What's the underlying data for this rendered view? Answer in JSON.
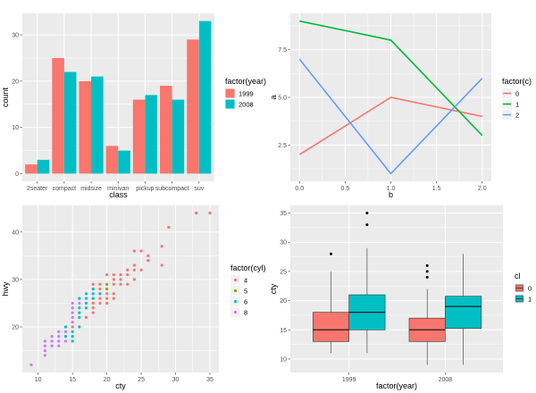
{
  "chart_data": [
    {
      "type": "bar",
      "xlabel": "class",
      "ylabel": "count",
      "categories": [
        "2seater",
        "compact",
        "midsize",
        "minivan",
        "pickup",
        "subcompact",
        "suv"
      ],
      "series": [
        {
          "name": "1999",
          "color": "#F8766D",
          "values": [
            2,
            25,
            20,
            6,
            16,
            19,
            29
          ]
        },
        {
          "name": "2008",
          "color": "#00BFC4",
          "values": [
            3,
            22,
            21,
            5,
            17,
            16,
            33
          ]
        }
      ],
      "legend_title": "factor(year)",
      "legend_position": "right",
      "ylim": [
        -1.65,
        34.65
      ],
      "yticks": [
        0,
        10,
        20,
        30
      ],
      "ytick_labels": [
        "0",
        "10",
        "20",
        "30"
      ],
      "grid": true,
      "background": "#EBEBEB"
    },
    {
      "type": "line",
      "xlabel": "b",
      "ylabel": "a",
      "x": [
        0,
        1,
        2
      ],
      "series": [
        {
          "name": "0",
          "color": "#F8766D",
          "values": [
            2,
            5,
            4
          ]
        },
        {
          "name": "1",
          "color": "#00BA38",
          "values": [
            9,
            8,
            3
          ]
        },
        {
          "name": "2",
          "color": "#619CFF",
          "values": [
            7,
            1,
            6
          ]
        }
      ],
      "legend_title": "factor(c)",
      "legend_position": "right",
      "xlim": [
        -0.1,
        2.1
      ],
      "ylim": [
        0.6,
        9.4
      ],
      "xticks": [
        0,
        0.5,
        1,
        1.5,
        2
      ],
      "xtick_labels": [
        "0.0",
        "0.5",
        "1.0",
        "1.5",
        "2.0"
      ],
      "yticks": [
        2.5,
        5,
        7.5
      ],
      "ytick_labels": [
        "2.5",
        "5.0",
        "7.5"
      ],
      "grid": true
    },
    {
      "type": "scatter",
      "xlabel": "cty",
      "ylabel": "hwy",
      "legend_title": "factor(cyl)",
      "legend_position": "right",
      "groups": [
        {
          "name": "4",
          "color": "#F8766D"
        },
        {
          "name": "5",
          "color": "#7CAE00"
        },
        {
          "name": "6",
          "color": "#00BFC4"
        },
        {
          "name": "8",
          "color": "#C77CFF"
        }
      ],
      "points": [
        [
          9,
          12,
          "8"
        ],
        [
          11,
          14,
          "8"
        ],
        [
          11,
          15,
          "8"
        ],
        [
          11,
          16,
          "8"
        ],
        [
          11,
          17,
          "8"
        ],
        [
          12,
          16,
          "8"
        ],
        [
          12,
          17,
          "8"
        ],
        [
          12,
          18,
          "8"
        ],
        [
          13,
          16,
          "8"
        ],
        [
          13,
          17,
          "8"
        ],
        [
          13,
          18,
          "8"
        ],
        [
          13,
          19,
          "8"
        ],
        [
          14,
          17,
          "8"
        ],
        [
          14,
          18,
          "6"
        ],
        [
          14,
          19,
          "8"
        ],
        [
          14,
          20,
          "6"
        ],
        [
          15,
          17,
          "6"
        ],
        [
          15,
          18,
          "6"
        ],
        [
          15,
          19,
          "6"
        ],
        [
          15,
          20,
          "4"
        ],
        [
          15,
          21,
          "8"
        ],
        [
          15,
          22,
          "8"
        ],
        [
          15,
          23,
          "8"
        ],
        [
          15,
          24,
          "8"
        ],
        [
          15,
          25,
          "8"
        ],
        [
          16,
          20,
          "6"
        ],
        [
          16,
          22,
          "6"
        ],
        [
          16,
          23,
          "6"
        ],
        [
          16,
          24,
          "6"
        ],
        [
          16,
          25,
          "8"
        ],
        [
          16,
          26,
          "6"
        ],
        [
          17,
          22,
          "4"
        ],
        [
          17,
          24,
          "6"
        ],
        [
          17,
          25,
          "6"
        ],
        [
          17,
          26,
          "6"
        ],
        [
          17,
          27,
          "6"
        ],
        [
          18,
          23,
          "4"
        ],
        [
          18,
          24,
          "4"
        ],
        [
          18,
          25,
          "4"
        ],
        [
          18,
          26,
          "6"
        ],
        [
          18,
          27,
          "6"
        ],
        [
          18,
          28,
          "6"
        ],
        [
          18,
          29,
          "4"
        ],
        [
          19,
          25,
          "4"
        ],
        [
          19,
          26,
          "4"
        ],
        [
          19,
          27,
          "6"
        ],
        [
          19,
          28,
          "4"
        ],
        [
          19,
          29,
          "4"
        ],
        [
          20,
          25,
          "4"
        ],
        [
          20,
          26,
          "4"
        ],
        [
          20,
          27,
          "4"
        ],
        [
          20,
          28,
          "5"
        ],
        [
          20,
          29,
          "5"
        ],
        [
          20,
          31,
          "4"
        ],
        [
          21,
          26,
          "4"
        ],
        [
          21,
          27,
          "4"
        ],
        [
          21,
          29,
          "4"
        ],
        [
          21,
          30,
          "4"
        ],
        [
          21,
          31,
          "4"
        ],
        [
          22,
          29,
          "4"
        ],
        [
          22,
          30,
          "4"
        ],
        [
          22,
          31,
          "4"
        ],
        [
          23,
          29,
          "4"
        ],
        [
          23,
          31,
          "4"
        ],
        [
          23,
          32,
          "4"
        ],
        [
          24,
          30,
          "4"
        ],
        [
          24,
          32,
          "4"
        ],
        [
          24,
          33,
          "4"
        ],
        [
          24,
          36,
          "4"
        ],
        [
          25,
          32,
          "4"
        ],
        [
          25,
          36,
          "4"
        ],
        [
          26,
          34,
          "4"
        ],
        [
          26,
          35,
          "4"
        ],
        [
          28,
          33,
          "4"
        ],
        [
          28,
          37,
          "4"
        ],
        [
          29,
          41,
          "4"
        ],
        [
          33,
          44,
          "4"
        ],
        [
          35,
          44,
          "4"
        ]
      ],
      "xlim": [
        7.7,
        36.3
      ],
      "ylim": [
        10.4,
        45.6
      ],
      "xticks": [
        10,
        15,
        20,
        25,
        30,
        35
      ],
      "xtick_labels": [
        "10",
        "15",
        "20",
        "25",
        "30",
        "35"
      ],
      "yticks": [
        20,
        30,
        40
      ],
      "ytick_labels": [
        "20",
        "30",
        "40"
      ],
      "grid": true
    },
    {
      "type": "boxplot",
      "xlabel": "factor(year)",
      "ylabel": "cty",
      "categories": [
        "1999",
        "2008"
      ],
      "legend_title": "cl",
      "legend_position": "right",
      "groups": [
        {
          "name": "0",
          "color": "#F8766D"
        },
        {
          "name": "1",
          "color": "#00BFC4"
        }
      ],
      "boxes": [
        {
          "category": "1999",
          "group": "0",
          "min": 11,
          "q1": 13,
          "median": 15,
          "q3": 18,
          "max": 25,
          "outliers": [
            28
          ]
        },
        {
          "category": "1999",
          "group": "1",
          "min": 11,
          "q1": 15,
          "median": 18,
          "q3": 21,
          "max": 29,
          "outliers": [
            33,
            35
          ]
        },
        {
          "category": "2008",
          "group": "0",
          "min": 9,
          "q1": 13,
          "median": 15,
          "q3": 17,
          "max": 22,
          "outliers": [
            24,
            25,
            26
          ]
        },
        {
          "category": "2008",
          "group": "1",
          "min": 9,
          "q1": 15.25,
          "median": 19,
          "q3": 20.75,
          "max": 28,
          "outliers": []
        }
      ],
      "ylim": [
        7.7,
        36.3
      ],
      "yticks": [
        10,
        15,
        20,
        25,
        30,
        35
      ],
      "ytick_labels": [
        "10",
        "15",
        "20",
        "25",
        "30",
        "35"
      ],
      "grid": true
    }
  ]
}
